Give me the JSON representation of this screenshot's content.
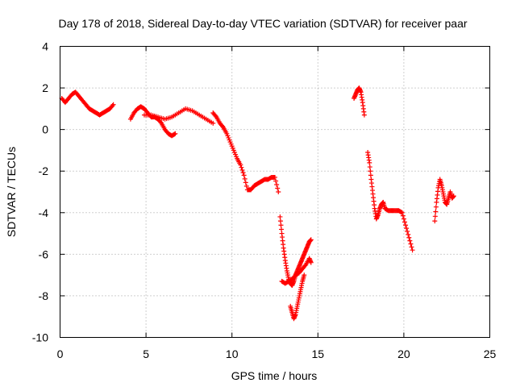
{
  "chart_data": {
    "type": "scatter",
    "title": "Day 178 of 2018, Sidereal Day-to-day VTEC variation (SDTVAR) for receiver paar",
    "xlabel": "GPS time / hours",
    "ylabel": "SDTVAR / TECUs",
    "xlim": [
      0,
      25
    ],
    "ylim": [
      -10,
      4
    ],
    "xticks": [
      0,
      5,
      10,
      15,
      20,
      25
    ],
    "yticks": [
      -10,
      -8,
      -6,
      -4,
      -2,
      0,
      2,
      4
    ],
    "grid": true,
    "grid_style": "dotted",
    "marker": "+",
    "series": [
      {
        "name": "SDTVAR",
        "color": "#ff0000",
        "segments": [
          {
            "x": [
              0.1,
              0.3,
              0.5,
              0.7,
              0.9,
              1.1,
              1.3,
              1.5,
              1.7,
              1.9,
              2.1,
              2.3,
              2.5,
              2.7,
              2.9,
              3.1
            ],
            "y": [
              1.5,
              1.3,
              1.5,
              1.7,
              1.8,
              1.6,
              1.4,
              1.2,
              1.0,
              0.9,
              0.8,
              0.7,
              0.8,
              0.9,
              1.0,
              1.2
            ]
          },
          {
            "x": [
              4.1,
              4.3,
              4.5,
              4.7,
              4.9,
              5.1,
              5.3,
              5.5,
              5.7,
              5.9,
              6.1,
              6.3,
              6.5,
              6.7
            ],
            "y": [
              0.5,
              0.8,
              1.0,
              1.1,
              1.0,
              0.8,
              0.6,
              0.6,
              0.5,
              0.3,
              0.0,
              -0.2,
              -0.3,
              -0.2
            ]
          },
          {
            "x": [
              4.9,
              5.3,
              5.7,
              6.1,
              6.5,
              6.9,
              7.3,
              7.7,
              8.1,
              8.5,
              8.9
            ],
            "y": [
              0.7,
              0.7,
              0.6,
              0.5,
              0.6,
              0.8,
              1.0,
              0.9,
              0.7,
              0.5,
              0.3
            ]
          },
          {
            "x": [
              8.9,
              9.1,
              9.3,
              9.5,
              9.7,
              9.9,
              10.1,
              10.3,
              10.5,
              10.7,
              10.9,
              11.1,
              11.3,
              11.5,
              11.7,
              11.9,
              12.1,
              12.3,
              12.5,
              12.7
            ],
            "y": [
              0.8,
              0.6,
              0.3,
              0.1,
              -0.2,
              -0.6,
              -1.0,
              -1.4,
              -1.7,
              -2.2,
              -2.9,
              -2.9,
              -2.7,
              -2.6,
              -2.5,
              -2.4,
              -2.4,
              -2.3,
              -2.3,
              -3.0
            ]
          },
          {
            "x": [
              12.8,
              12.9,
              13.0,
              13.1,
              13.2,
              13.3,
              13.4,
              13.5,
              13.6,
              13.7,
              13.8,
              13.9,
              14.0,
              14.1,
              14.2,
              14.3,
              14.4,
              14.5,
              14.6
            ],
            "y": [
              -4.2,
              -5.0,
              -5.7,
              -6.3,
              -6.8,
              -7.2,
              -7.4,
              -7.5,
              -7.3,
              -7.0,
              -6.8,
              -6.6,
              -6.4,
              -6.2,
              -6.0,
              -5.8,
              -5.6,
              -5.4,
              -5.3
            ]
          },
          {
            "x": [
              12.9,
              13.1,
              13.3,
              13.5,
              13.7,
              13.9,
              14.1,
              14.3,
              14.5,
              14.6
            ],
            "y": [
              -7.3,
              -7.4,
              -7.3,
              -7.2,
              -7.0,
              -6.9,
              -6.7,
              -6.5,
              -6.2,
              -6.4
            ]
          },
          {
            "x": [
              13.4,
              13.5,
              13.6,
              13.7,
              13.8,
              13.9,
              14.0,
              14.1,
              14.2
            ],
            "y": [
              -8.5,
              -8.8,
              -9.1,
              -8.9,
              -8.5,
              -8.1,
              -7.7,
              -7.3,
              -7.0
            ]
          },
          {
            "x": [
              17.1,
              17.2,
              17.3,
              17.4,
              17.5,
              17.6,
              17.7
            ],
            "y": [
              1.5,
              1.7,
              1.9,
              2.0,
              1.8,
              1.3,
              0.7
            ]
          },
          {
            "x": [
              17.9,
              18.0,
              18.1,
              18.2,
              18.3,
              18.4,
              18.5,
              18.6,
              18.7,
              18.8,
              18.9,
              19.1,
              19.3,
              19.5,
              19.7,
              19.9,
              20.1,
              20.3,
              20.5
            ],
            "y": [
              -1.1,
              -1.6,
              -2.4,
              -3.1,
              -3.8,
              -4.3,
              -4.1,
              -3.8,
              -3.6,
              -3.5,
              -3.8,
              -3.9,
              -3.9,
              -3.9,
              -3.9,
              -4.0,
              -4.6,
              -5.2,
              -5.8
            ]
          },
          {
            "x": [
              21.8,
              21.9,
              22.0,
              22.1,
              22.2,
              22.3,
              22.4,
              22.5,
              22.6,
              22.7,
              22.8,
              22.9
            ],
            "y": [
              -4.4,
              -3.5,
              -2.8,
              -2.4,
              -2.7,
              -3.1,
              -3.5,
              -3.6,
              -3.3,
              -3.0,
              -3.3,
              -3.2
            ]
          }
        ]
      }
    ]
  }
}
